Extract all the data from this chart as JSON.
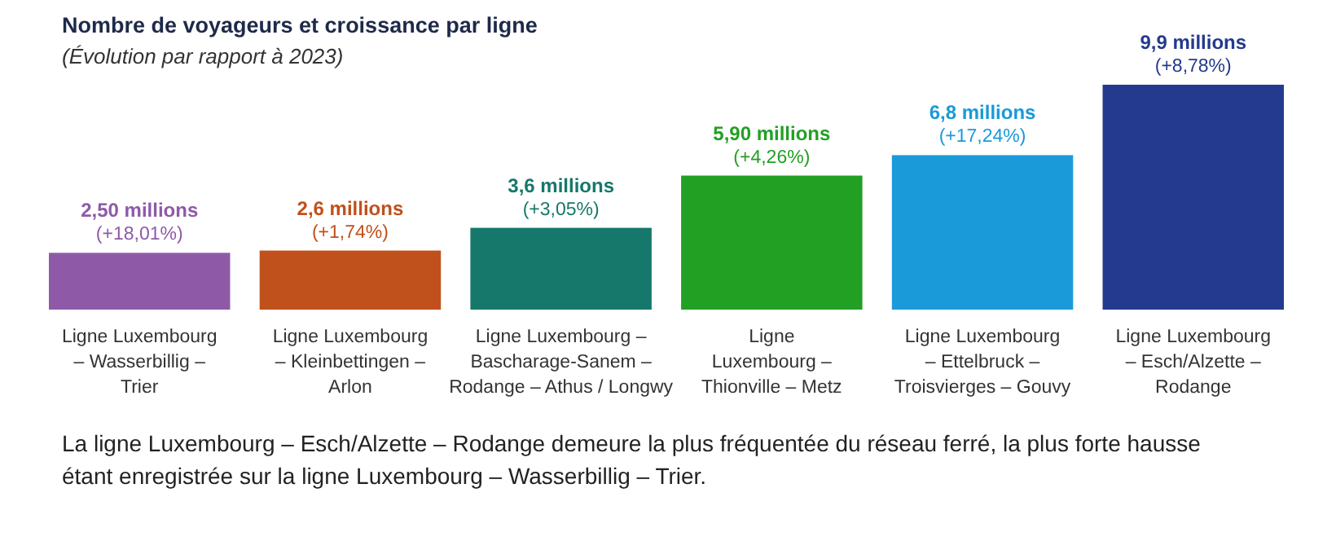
{
  "chart_data": {
    "type": "bar",
    "title": "Nombre de voyageurs et croissance par ligne",
    "subtitle": "(Évolution par rapport à 2023)",
    "categories": [
      "Ligne Luxembourg\n– Wasserbillig –\nTrier",
      "Ligne Luxembourg\n– Kleinbettingen –\nArlon",
      "Ligne Luxembourg –\nBascharage-Sanem –\nRodange – Athus / Longwy",
      "Ligne\nLuxembourg –\nThionville – Metz",
      "Ligne Luxembourg\n– Ettelbruck –\nTroisvierges – Gouvy",
      "Ligne Luxembourg\n– Esch/Alzette –\nRodange"
    ],
    "values": [
      2.5,
      2.6,
      3.6,
      5.9,
      6.8,
      9.9
    ],
    "colors": [
      "#8e5aa8",
      "#c0501c",
      "#16786b",
      "#22a024",
      "#1a9ad8",
      "#243a8e"
    ],
    "value_labels": [
      "2,50 millions",
      "2,6 millions",
      "3,6 millions",
      "5,90 millions",
      "6,8 millions",
      "9,9 millions"
    ],
    "annotations": [
      {
        "text": "(+18,01%)",
        "x": "Ligne Luxembourg\n– Wasserbillig –\nTrier",
        "y": 2.5
      },
      {
        "text": "(+1,74%)",
        "x": "Ligne Luxembourg\n– Kleinbettingen –\nArlon",
        "y": 2.6
      },
      {
        "text": "(+3,05%)",
        "x": "Ligne Luxembourg –\nBascharage-Sanem –\nRodange – Athus / Longwy",
        "y": 3.6
      },
      {
        "text": "(+4,26%)",
        "x": "Ligne\nLuxembourg –\nThionville – Metz",
        "y": 5.9
      },
      {
        "text": "(+17,24%)",
        "x": "Ligne Luxembourg\n– Ettelbruck –\nTroisvierges – Gouvy",
        "y": 6.8
      },
      {
        "text": "(+8,78%)",
        "x": "Ligne Luxembourg\n– Esch/Alzette –\nRodange",
        "y": 9.9
      },
      "La ligne Luxembourg – Esch/Alzette – Rodange demeure la plus fréquentée du réseau ferré, la plus forte hausse\nétant enregistrée sur la ligne Luxembourg – Wasserbillig – Trier."
    ]
  }
}
